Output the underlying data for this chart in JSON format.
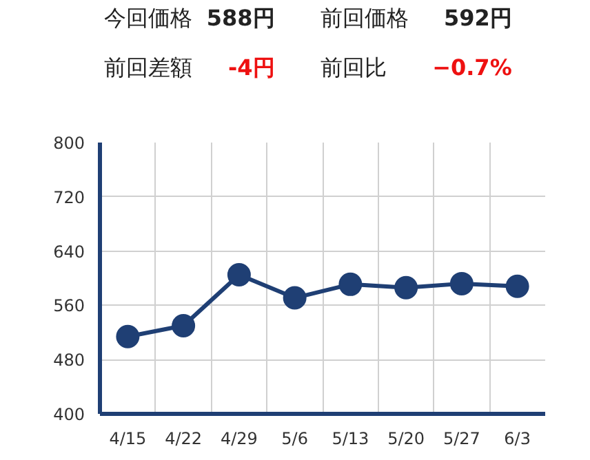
{
  "chart_data": {
    "type": "line",
    "categories": [
      "4/15",
      "4/22",
      "4/29",
      "5/6",
      "5/13",
      "5/20",
      "5/27",
      "6/3"
    ],
    "series": [
      {
        "color": "#1f3f74",
        "values": [
          514,
          530,
          605,
          571,
          591,
          586,
          592,
          588
        ]
      }
    ],
    "ylim": [
      400,
      800
    ],
    "yticks": [
      400,
      480,
      560,
      640,
      720,
      800
    ],
    "grid": true,
    "marker": "circle",
    "line_style": "solid",
    "annotations": [
      "今回価格",
      "588円",
      "前回価格",
      "592円",
      "前回差額",
      "-4円",
      "前回比",
      "−0.7%"
    ]
  }
}
